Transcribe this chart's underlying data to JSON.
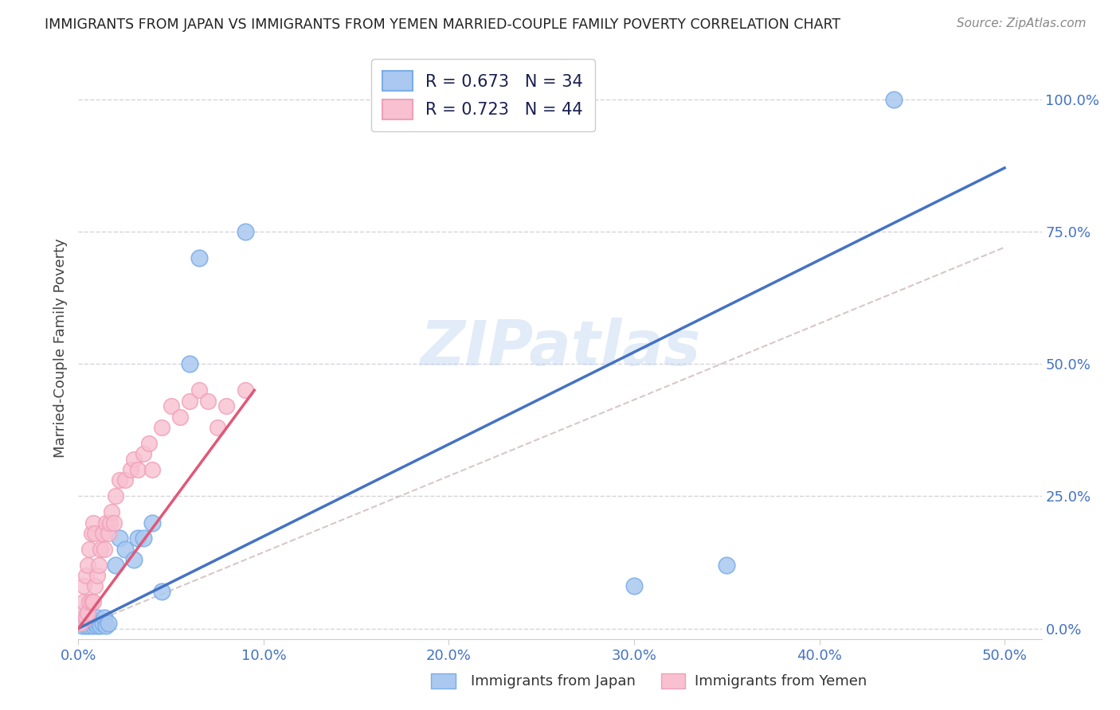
{
  "title": "IMMIGRANTS FROM JAPAN VS IMMIGRANTS FROM YEMEN MARRIED-COUPLE FAMILY POVERTY CORRELATION CHART",
  "source": "Source: ZipAtlas.com",
  "xlim": [
    0.0,
    0.52
  ],
  "ylim": [
    -0.02,
    1.08
  ],
  "ylabel": "Married-Couple Family Poverty",
  "japan_color": "#7aaee8",
  "japan_color_fill": "#aac8f0",
  "yemen_color": "#f0a0b8",
  "yemen_color_fill": "#f8c0d0",
  "japan_line_color": "#4472c4",
  "yemen_line_color": "#e05878",
  "dash_color": "#c8b0b0",
  "R_japan": 0.673,
  "N_japan": 34,
  "R_yemen": 0.723,
  "N_yemen": 44,
  "watermark": "ZIPatlas",
  "legend_japan": "R = 0.673   N = 34",
  "legend_yemen": "R = 0.723   N = 44",
  "legend_label_japan": "Immigrants from Japan",
  "legend_label_yemen": "Immigrants from Yemen",
  "japan_x": [
    0.001,
    0.002,
    0.003,
    0.003,
    0.004,
    0.005,
    0.005,
    0.006,
    0.006,
    0.007,
    0.008,
    0.009,
    0.01,
    0.01,
    0.011,
    0.012,
    0.013,
    0.014,
    0.015,
    0.016,
    0.02,
    0.022,
    0.025,
    0.03,
    0.032,
    0.035,
    0.04,
    0.045,
    0.06,
    0.065,
    0.09,
    0.3,
    0.35,
    0.44
  ],
  "japan_y": [
    0.01,
    0.005,
    0.01,
    0.02,
    0.005,
    0.01,
    0.03,
    0.005,
    0.02,
    0.01,
    0.005,
    0.01,
    0.005,
    0.02,
    0.01,
    0.005,
    0.01,
    0.02,
    0.005,
    0.01,
    0.12,
    0.17,
    0.15,
    0.13,
    0.17,
    0.17,
    0.2,
    0.07,
    0.5,
    0.7,
    0.75,
    0.08,
    0.12,
    1.0
  ],
  "yemen_x": [
    0.001,
    0.002,
    0.003,
    0.003,
    0.004,
    0.004,
    0.005,
    0.005,
    0.006,
    0.006,
    0.007,
    0.007,
    0.008,
    0.008,
    0.009,
    0.009,
    0.01,
    0.011,
    0.012,
    0.013,
    0.014,
    0.015,
    0.016,
    0.017,
    0.018,
    0.019,
    0.02,
    0.022,
    0.025,
    0.028,
    0.03,
    0.032,
    0.035,
    0.038,
    0.04,
    0.045,
    0.05,
    0.055,
    0.06,
    0.065,
    0.07,
    0.075,
    0.08,
    0.09
  ],
  "yemen_y": [
    0.01,
    0.03,
    0.05,
    0.08,
    0.02,
    0.1,
    0.03,
    0.12,
    0.05,
    0.15,
    0.05,
    0.18,
    0.05,
    0.2,
    0.08,
    0.18,
    0.1,
    0.12,
    0.15,
    0.18,
    0.15,
    0.2,
    0.18,
    0.2,
    0.22,
    0.2,
    0.25,
    0.28,
    0.28,
    0.3,
    0.32,
    0.3,
    0.33,
    0.35,
    0.3,
    0.38,
    0.42,
    0.4,
    0.43,
    0.45,
    0.43,
    0.38,
    0.42,
    0.45
  ],
  "jp_line_x": [
    0.0,
    0.5
  ],
  "jp_line_y": [
    0.0,
    0.87
  ],
  "ym_line_x": [
    0.0,
    0.095
  ],
  "ym_line_y": [
    0.0,
    0.45
  ],
  "dash_line_x": [
    0.0,
    0.5
  ],
  "dash_line_y": [
    0.0,
    0.72
  ]
}
